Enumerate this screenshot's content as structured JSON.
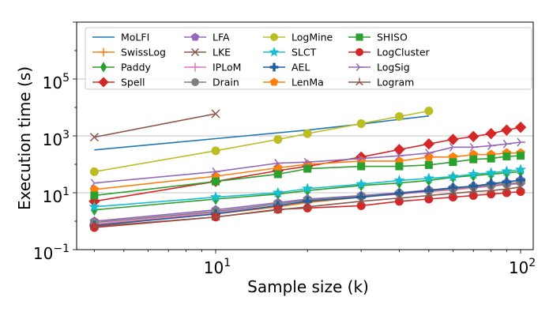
{
  "chart_data": {
    "type": "line",
    "xscale": "log",
    "yscale": "log",
    "xlabel": "Sample size (k)",
    "ylabel": "Execution time (s)",
    "xlim": [
      3.5,
      110
    ],
    "ylim": [
      0.1,
      10000000
    ],
    "x_ticks": [
      {
        "base": "10",
        "exp": "1"
      },
      {
        "base": "10",
        "exp": "2"
      }
    ],
    "y_ticks": [
      {
        "base": "10",
        "exp": "−1"
      },
      {
        "base": "10",
        "exp": "1"
      },
      {
        "base": "10",
        "exp": "3"
      },
      {
        "base": "10",
        "exp": "5"
      }
    ],
    "grid": "horizontal at labeled y ticks",
    "legend_position": "top-left, 5 columns",
    "series": [
      {
        "name": "MoLFI",
        "color": "#1f77b4",
        "marker": "none",
        "x": [
          4,
          10,
          20,
          30,
          40,
          50
        ],
        "y": [
          320,
          800,
          1600,
          2600,
          3800,
          5000
        ]
      },
      {
        "name": "SwissLog",
        "color": "#ff7f0e",
        "marker": "plus",
        "x": [
          4,
          10,
          16,
          20,
          30,
          40,
          50,
          60,
          70,
          80,
          90,
          100
        ],
        "y": [
          0.75,
          1.8,
          3.2,
          4.5,
          7,
          9,
          11,
          12.5,
          15,
          17,
          20,
          23
        ]
      },
      {
        "name": "Paddy",
        "color": "#2ca02c",
        "marker": "thin_diamond",
        "x": [
          4,
          10,
          16,
          20,
          30,
          40,
          50,
          60,
          70,
          80,
          90,
          100
        ],
        "y": [
          2.5,
          6,
          9,
          12,
          18,
          22,
          27,
          35,
          40,
          45,
          50,
          55
        ]
      },
      {
        "name": "Spell",
        "color": "#d62728",
        "marker": "diamond",
        "x": [
          4,
          10,
          16,
          20,
          30,
          40,
          50,
          60,
          70,
          80,
          90,
          100
        ],
        "y": [
          5,
          25,
          60,
          85,
          180,
          330,
          520,
          750,
          950,
          1200,
          1600,
          2000
        ]
      },
      {
        "name": "LFA",
        "color": "#9467bd",
        "marker": "pentagon",
        "x": [
          4,
          10,
          16,
          20,
          30,
          40,
          50,
          60,
          70,
          80,
          90,
          100
        ],
        "y": [
          1.0,
          2.5,
          4.5,
          6,
          8,
          10,
          12.5,
          15,
          17,
          20,
          23,
          28
        ]
      },
      {
        "name": "LKE",
        "color": "#8c564b",
        "marker": "x",
        "x": [
          4,
          10
        ],
        "y": [
          900,
          6000
        ]
      },
      {
        "name": "IPLoM",
        "color": "#e377c2",
        "marker": "plus",
        "x": [
          4,
          10,
          16,
          20,
          30,
          40,
          50,
          60,
          70,
          80,
          90,
          100
        ],
        "y": [
          0.8,
          2.0,
          3.5,
          5,
          7,
          9,
          11,
          13,
          15,
          17,
          19,
          21
        ]
      },
      {
        "name": "Drain",
        "color": "#7f7f7f",
        "marker": "circle",
        "x": [
          4,
          10,
          16,
          20,
          30,
          40,
          50,
          60,
          70,
          80,
          90,
          100
        ],
        "y": [
          0.9,
          2.2,
          4,
          5.5,
          7.5,
          9.5,
          11.5,
          14,
          16,
          18,
          20,
          23
        ]
      },
      {
        "name": "LogMine",
        "color": "#bcbd22",
        "marker": "circle",
        "x": [
          4,
          10,
          16,
          20,
          30,
          40,
          50
        ],
        "y": [
          55,
          300,
          750,
          1200,
          2700,
          4800,
          7500
        ]
      },
      {
        "name": "SLCT",
        "color": "#17becf",
        "marker": "star",
        "x": [
          4,
          10,
          16,
          20,
          30,
          40,
          50,
          60,
          70,
          80,
          90,
          100
        ],
        "y": [
          3.2,
          7,
          10,
          14,
          20,
          27,
          32,
          37,
          45,
          50,
          57,
          65
        ]
      },
      {
        "name": "AEL",
        "color": "#1f5f9f",
        "marker": "plus_filled",
        "x": [
          4,
          10,
          16,
          20,
          30,
          40,
          50,
          60,
          70,
          80,
          90,
          100
        ],
        "y": [
          0.7,
          1.8,
          3.5,
          5,
          7,
          9.5,
          12,
          15,
          17,
          21,
          24,
          28
        ]
      },
      {
        "name": "LenMa",
        "color": "#ff7f0e",
        "marker": "pentagon",
        "x": [
          4,
          10,
          16,
          20,
          30,
          40,
          50,
          60,
          70,
          80,
          90,
          100
        ],
        "y": [
          13,
          38,
          75,
          100,
          130,
          130,
          180,
          180,
          220,
          220,
          250,
          250
        ]
      },
      {
        "name": "SHISO",
        "color": "#2ca02c",
        "marker": "square",
        "x": [
          4,
          10,
          16,
          20,
          30,
          40,
          50,
          60,
          70,
          80,
          90,
          100
        ],
        "y": [
          8,
          25,
          45,
          70,
          85,
          85,
          95,
          120,
          150,
          160,
          190,
          200
        ]
      },
      {
        "name": "LogCluster",
        "color": "#d62728",
        "marker": "circle",
        "x": [
          4,
          10,
          16,
          20,
          30,
          40,
          50,
          60,
          70,
          80,
          90,
          100
        ],
        "y": [
          0.6,
          1.4,
          2.6,
          2.9,
          3.5,
          5,
          6,
          7,
          8,
          9,
          10,
          11
        ]
      },
      {
        "name": "LogSig",
        "color": "#9467bd",
        "marker": "tri_right",
        "x": [
          4,
          10,
          16,
          20,
          30,
          40,
          50,
          60,
          70,
          80,
          90,
          100
        ],
        "y": [
          22,
          55,
          110,
          120,
          160,
          200,
          250,
          400,
          400,
          450,
          520,
          600
        ]
      },
      {
        "name": "Logram",
        "color": "#8c564b",
        "marker": "tri_up",
        "x": [
          4,
          10,
          16,
          20,
          30,
          40,
          50,
          60,
          70,
          80,
          90,
          100
        ],
        "y": [
          0.65,
          1.4,
          2.5,
          3.2,
          5,
          6.5,
          8,
          9.5,
          11,
          12,
          13.5,
          16
        ]
      }
    ]
  }
}
